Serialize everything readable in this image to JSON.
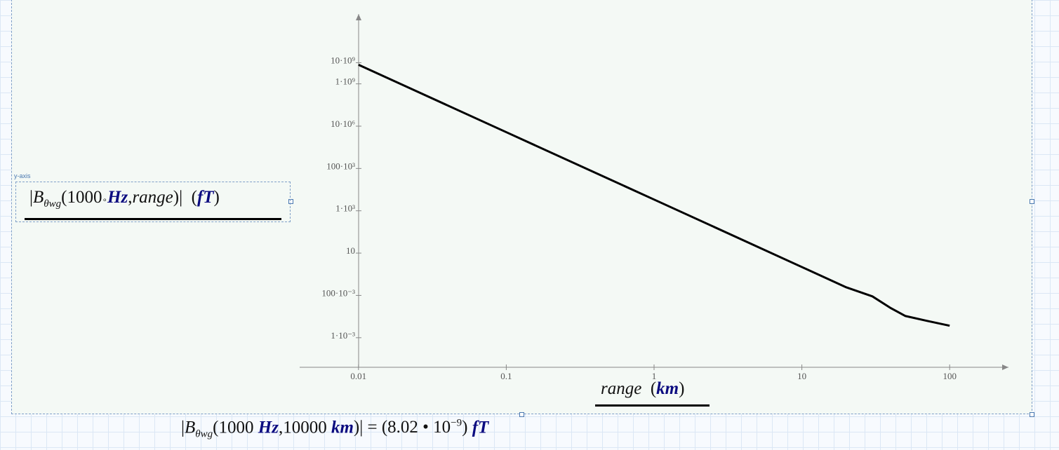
{
  "chart_data": {
    "type": "line",
    "log_x": true,
    "log_y": true,
    "axis_tag": "y-axis",
    "ylabel": {
      "symbol": "B",
      "subscript": "θwg",
      "argument": "1000",
      "argument_unit": "Hz",
      "variable": "range",
      "unit": "fT"
    },
    "xlabel": {
      "variable": "range",
      "unit": "km"
    },
    "x": [
      0.01,
      0.1,
      1,
      10,
      20,
      30,
      40,
      50,
      70,
      100
    ],
    "series": [
      {
        "color": "#000000",
        "values": [
          8000000000.0,
          5200000.0,
          3400,
          2.2,
          0.24,
          0.09,
          0.025,
          0.0107,
          0.0063,
          0.0037
        ]
      }
    ],
    "xlim": [
      0.004,
      250
    ],
    "ylim": [
      4e-05,
      2000000000000.0
    ],
    "xticks": [
      0.01,
      0.1,
      1,
      10,
      100
    ],
    "yticks": [
      {
        "value": 10000000000.0,
        "label": "10·10⁹"
      },
      {
        "value": 1000000000.0,
        "label": "1·10⁹"
      },
      {
        "value": 10000000.0,
        "label": "10·10⁶"
      },
      {
        "value": 100000.0,
        "label": "100·10³"
      },
      {
        "value": 1000,
        "label": "1·10³"
      },
      10,
      {
        "value": 0.1,
        "label": "100·10⁻³"
      },
      {
        "value": 0.001,
        "label": "1·10⁻³"
      }
    ]
  },
  "worksheet": {
    "symbol": "B",
    "subscript": "θwg",
    "frequency": "1000",
    "frequency_unit": "Hz",
    "distance": "10000",
    "distance_unit": "km",
    "mantissa": "8.02",
    "base": "10",
    "exponent": "−9",
    "unit": "fT"
  }
}
